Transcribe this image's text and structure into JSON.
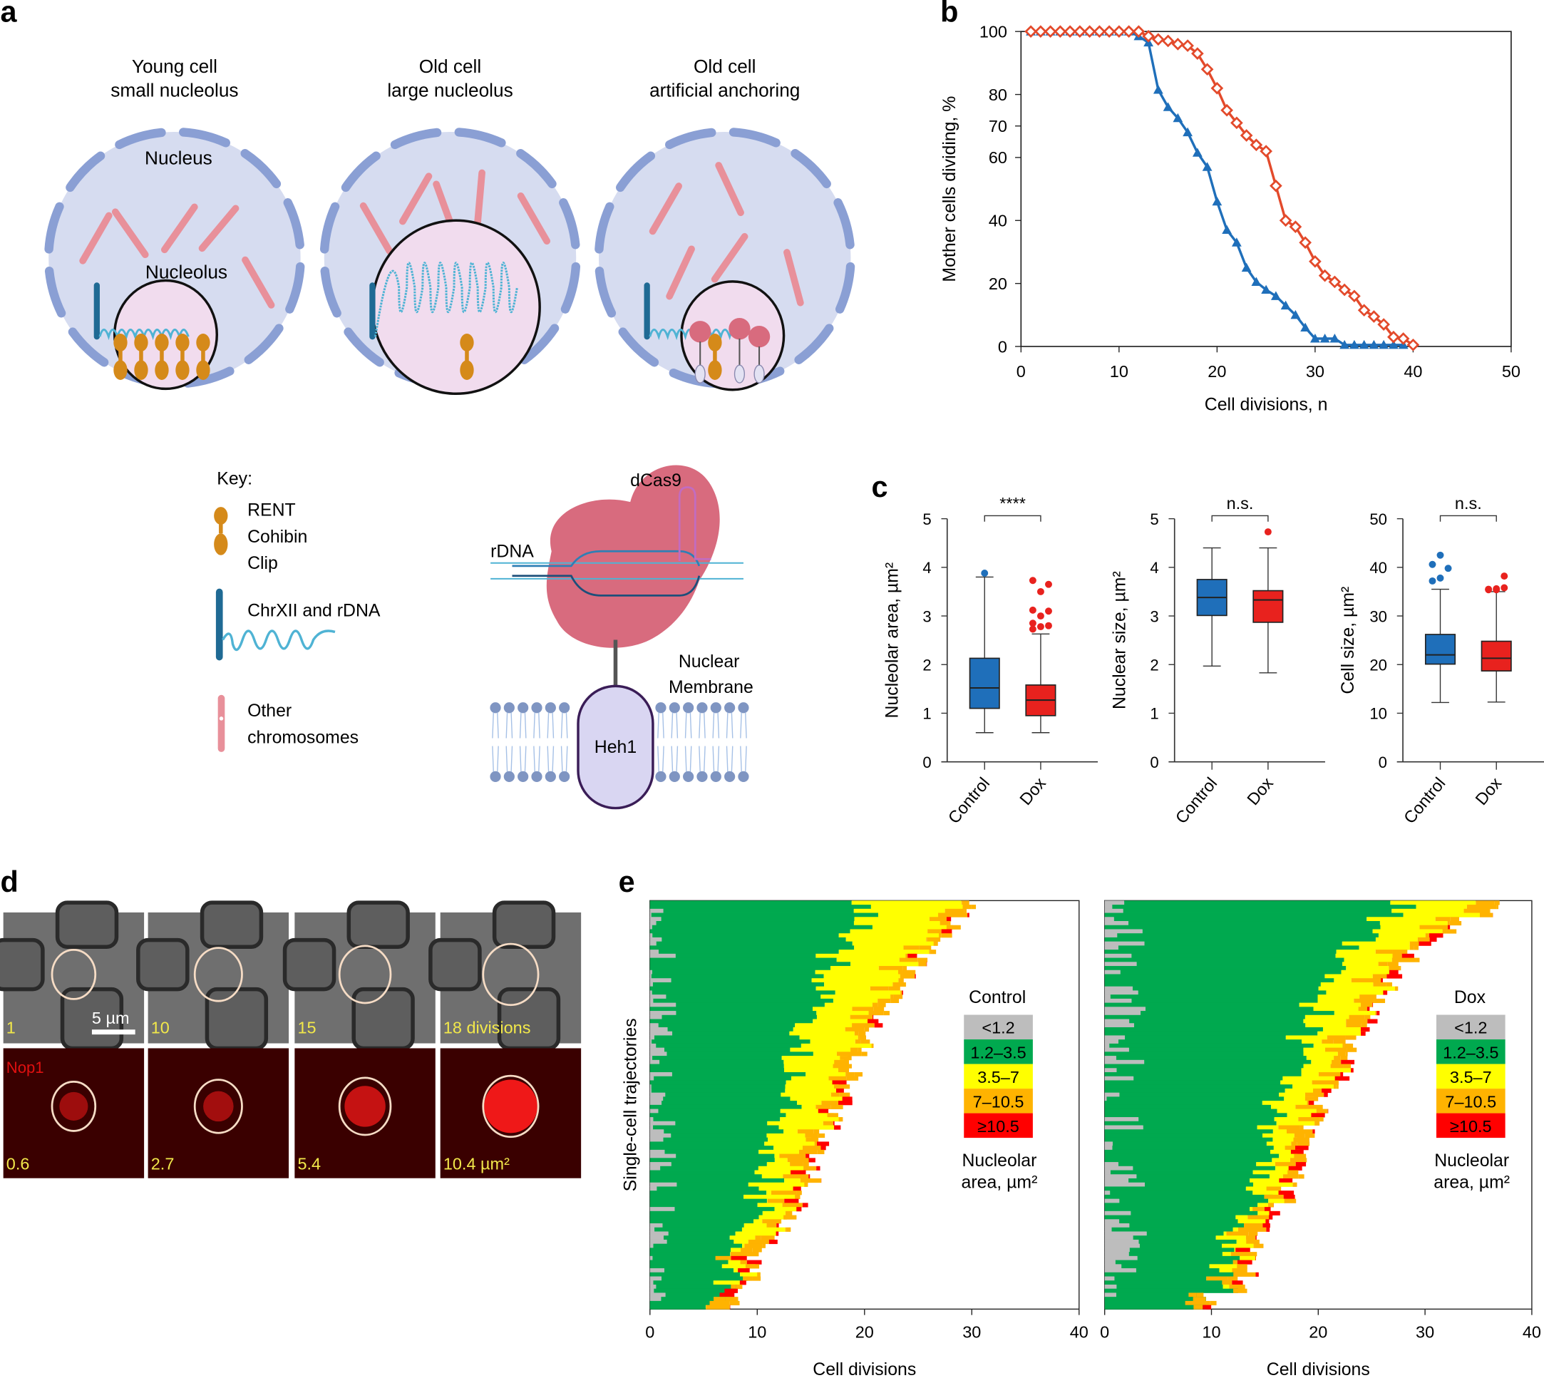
{
  "panel_labels": {
    "a": "a",
    "b": "b",
    "c": "c",
    "d": "d",
    "e": "e"
  },
  "panel_a": {
    "cells": [
      {
        "title_line1": "Young cell",
        "title_line2": "small nucleolus",
        "nucleus_label": "Nucleus",
        "nucleolus_label": "Nucleolus"
      },
      {
        "title_line1": "Old cell",
        "title_line2": "large nucleolus"
      },
      {
        "title_line1": "Old cell",
        "title_line2": "artificial anchoring"
      }
    ],
    "key": {
      "title": "Key:",
      "items": [
        {
          "icon": "rent-cohibin-clip-icon",
          "lines": [
            "RENT",
            "Cohibin",
            "Clip"
          ]
        },
        {
          "icon": "chrxii-rdna-icon",
          "lines": [
            "ChrXII and rDNA"
          ]
        },
        {
          "icon": "other-chromosome-icon",
          "lines": [
            "Other",
            "chromosomes"
          ]
        }
      ]
    },
    "anchoring_schematic": {
      "dcas9": "dCas9",
      "rdna": "rDNA",
      "heh1": "Heh1",
      "membrane_line1": "Nuclear",
      "membrane_line2": "Membrane"
    }
  },
  "colors": {
    "control": "#1f6fba",
    "dox": "#e8221e",
    "survival_dox": "#e34a2b",
    "nuc_fill": "#d6dcf0",
    "nuc_envelope": "#8a9fd4",
    "nucleolus_fill": "#f1dcee",
    "chromosome": "#e8909a",
    "rent": "#d58a1a",
    "rdna": "#4fb3d4",
    "chrxii": "#1f6a94",
    "dcas9": "#d86b7e",
    "heh1": "#d9d6f2",
    "cat_lt1_2": "#bdbdbd",
    "cat_1_2_3_5": "#00a94f",
    "cat_3_5_7": "#ffff00",
    "cat_7_10_5": "#ffb300",
    "cat_ge10_5": "#ff0000"
  },
  "panel_d": {
    "scale_bar": "5 µm",
    "channel_label": "Nop1",
    "brightfield_labels": [
      "1",
      "10",
      "15",
      "18 divisions"
    ],
    "fluorescence_labels": [
      "0.6",
      "2.7",
      "5.4",
      "10.4 µm²"
    ],
    "nucleolar_intensity": [
      0.25,
      0.3,
      0.6,
      0.95
    ]
  },
  "chart_data": [
    {
      "id": "b",
      "type": "line",
      "title": "",
      "xlabel": "Cell divisions, n",
      "ylabel": "Mother cells dividing, %",
      "xlim": [
        0,
        50
      ],
      "ylim": [
        0,
        100
      ],
      "xticks": [
        0,
        10,
        20,
        30,
        40,
        50
      ],
      "yticks": [
        0,
        20,
        40,
        60,
        70,
        80,
        100
      ],
      "series": [
        {
          "name": "Control",
          "marker": "triangle",
          "color": "#1f6fba",
          "x": [
            1,
            2,
            3,
            4,
            5,
            6,
            7,
            8,
            9,
            10,
            11,
            12,
            13,
            14,
            15,
            16,
            17,
            18,
            19,
            20,
            21,
            22,
            23,
            24,
            25,
            26,
            27,
            28,
            29,
            30,
            31,
            32,
            33,
            34,
            35,
            36,
            37,
            38,
            39
          ],
          "y": [
            100,
            100,
            100,
            100,
            100,
            100,
            100,
            100,
            100,
            100,
            100,
            98.5,
            96.5,
            81.5,
            76,
            72.5,
            68,
            61.5,
            57,
            46,
            37,
            33,
            25,
            20.5,
            18,
            16,
            13,
            10,
            6,
            2.5,
            2.5,
            2.5,
            0.5,
            0.5,
            0.5,
            0.5,
            0.5,
            0.5,
            0.5
          ]
        },
        {
          "name": "Dox",
          "marker": "diamond-open",
          "color": "#e34a2b",
          "x": [
            1,
            2,
            3,
            4,
            5,
            6,
            7,
            8,
            9,
            10,
            11,
            12,
            13,
            14,
            15,
            16,
            17,
            18,
            19,
            20,
            21,
            22,
            23,
            24,
            25,
            26,
            27,
            28,
            29,
            30,
            31,
            32,
            33,
            34,
            35,
            36,
            37,
            38,
            39,
            40
          ],
          "y": [
            100,
            100,
            100,
            100,
            100,
            100,
            100,
            100,
            100,
            100,
            100,
            100,
            98.5,
            97.5,
            97,
            96,
            95.5,
            93,
            88,
            82,
            75,
            71,
            67,
            64,
            62,
            51,
            40,
            38,
            33,
            27,
            22.5,
            20.5,
            18,
            16,
            11.5,
            9.5,
            7,
            3,
            2.5,
            0.5
          ]
        }
      ]
    },
    {
      "id": "c",
      "type": "box",
      "panels": [
        {
          "ylabel": "Nucleolar area, µm²",
          "ylim": [
            0,
            5
          ],
          "yticks": [
            0,
            1,
            2,
            3,
            4,
            5
          ],
          "significance": "****",
          "categories": [
            "Control",
            "Dox"
          ],
          "boxes": [
            {
              "name": "Control",
              "min": 0.6,
              "q1": 1.1,
              "median": 1.52,
              "q3": 2.13,
              "max": 3.8,
              "outliers": [
                3.88
              ]
            },
            {
              "name": "Dox",
              "min": 0.6,
              "q1": 0.95,
              "median": 1.27,
              "q3": 1.58,
              "max": 2.63,
              "outliers": [
                2.73,
                2.78,
                2.8,
                2.85,
                3.0,
                3.1,
                3.12,
                3.5,
                3.65,
                3.73
              ]
            }
          ]
        },
        {
          "ylabel": "Nuclear size, µm²",
          "ylim": [
            0,
            5
          ],
          "yticks": [
            0,
            1,
            2,
            3,
            4,
            5
          ],
          "significance": "n.s.",
          "categories": [
            "Control",
            "Dox"
          ],
          "boxes": [
            {
              "name": "Control",
              "min": 1.97,
              "q1": 3.01,
              "median": 3.38,
              "q3": 3.75,
              "max": 4.4,
              "outliers": []
            },
            {
              "name": "Dox",
              "min": 1.83,
              "q1": 2.87,
              "median": 3.33,
              "q3": 3.52,
              "max": 4.4,
              "outliers": [
                4.73
              ]
            }
          ]
        },
        {
          "ylabel": "Cell size, µm²",
          "ylim": [
            0,
            50
          ],
          "yticks": [
            0,
            10,
            20,
            30,
            40,
            50
          ],
          "significance": "n.s.",
          "categories": [
            "Control",
            "Dox"
          ],
          "boxes": [
            {
              "name": "Control",
              "min": 12.2,
              "q1": 20.1,
              "median": 22,
              "q3": 26.2,
              "max": 35.5,
              "outliers": [
                37.2,
                37.8,
                39.8,
                40.6,
                42.5
              ]
            },
            {
              "name": "Dox",
              "min": 12.3,
              "q1": 18.7,
              "median": 21.3,
              "q3": 24.8,
              "max": 35,
              "outliers": [
                35.4,
                35.6,
                35.8,
                35.5,
                35.4,
                38.2
              ]
            }
          ]
        }
      ]
    },
    {
      "id": "e",
      "type": "heatmap",
      "ylabel": "Single-cell trajectories",
      "xlabel": "Cell divisions",
      "xlim": [
        0,
        40
      ],
      "xticks": [
        0,
        10,
        20,
        30,
        40
      ],
      "legend_title_line1": "Nucleolar",
      "legend_title_line2": "area, µm²",
      "legend_categories": [
        "<1.2",
        "1.2–3.5",
        "3.5–7",
        "7–10.5",
        "≥10.5"
      ],
      "panels": [
        {
          "name": "Control",
          "row_count": 100,
          "lifespans_sample": [
            30.5,
            29.5,
            28.5,
            27.5,
            26,
            25,
            24,
            24,
            23,
            22,
            21,
            21,
            20,
            20,
            19,
            19,
            18,
            18,
            17,
            17,
            16,
            16,
            15,
            15,
            14.5,
            13.5,
            12.5,
            11.5,
            10.5,
            10.5,
            9.5,
            8.5
          ]
        },
        {
          "name": "Dox",
          "row_count": 100,
          "lifespans_sample": [
            37,
            33.5,
            32,
            29.5,
            28.5,
            27.5,
            26.5,
            26,
            25.5,
            24,
            24,
            23.5,
            22,
            21,
            21,
            20,
            20,
            19,
            19,
            18,
            17,
            16,
            15,
            14.5,
            14.5,
            13.5,
            10.5
          ]
        }
      ]
    }
  ]
}
